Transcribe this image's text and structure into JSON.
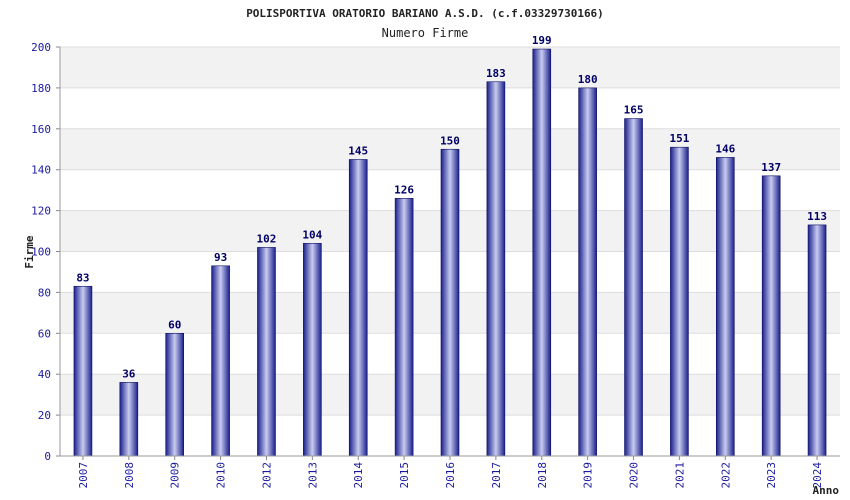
{
  "chart_data": {
    "type": "bar",
    "title": "POLISPORTIVA ORATORIO BARIANO A.S.D. (c.f.03329730166)",
    "subtitle": "Numero Firme",
    "xlabel": "Anno",
    "ylabel": "Firme",
    "ylim": [
      0,
      200
    ],
    "yticks": [
      "0",
      "20",
      "40",
      "60",
      "80",
      "100",
      "120",
      "140",
      "160",
      "180",
      "200"
    ],
    "grid": true,
    "categories": [
      "2007",
      "2008",
      "2009",
      "2010",
      "2012",
      "2013",
      "2014",
      "2015",
      "2016",
      "2017",
      "2018",
      "2019",
      "2020",
      "2021",
      "2022",
      "2023",
      "2024"
    ],
    "values": [
      83,
      36,
      60,
      93,
      102,
      104,
      145,
      126,
      150,
      183,
      199,
      180,
      165,
      151,
      146,
      137,
      113
    ],
    "data_labels": [
      "83",
      "36",
      "60",
      "93",
      "102",
      "104",
      "145",
      "126",
      "150",
      "183",
      "199",
      "180",
      "165",
      "151",
      "146",
      "137",
      "113"
    ],
    "colors": {
      "bar_dark": "#1a1f8c",
      "bar_light": "#c8ccf0",
      "bar_edge": "#0d1060",
      "label": "#000066",
      "tick": "#1a1aa0",
      "title": "#222222",
      "band": "#f2f2f2"
    }
  }
}
